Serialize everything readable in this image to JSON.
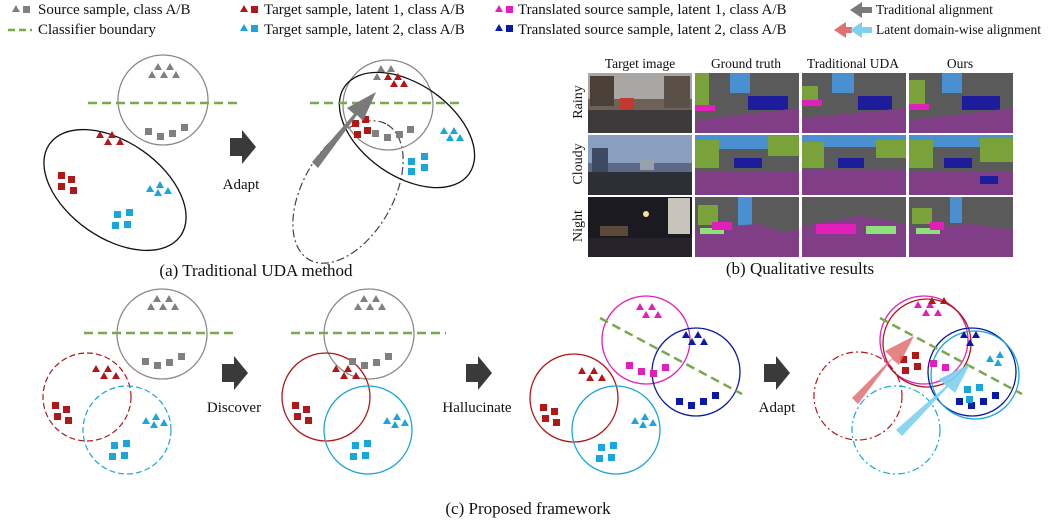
{
  "legend": {
    "source": "Source sample, class A/B",
    "boundary": "Classifier boundary",
    "target_l1": "Target sample,  latent 1, class A/B",
    "target_l2": "Target sample,  latent 2, class A/B",
    "trans_l1": "Translated source sample, latent 1, class A/B",
    "trans_l2": "Translated source sample, latent 2, class A/B",
    "trad_align": "Traditional alignment",
    "latent_align": "Latent domain-wise alignment"
  },
  "panel_a": {
    "caption": "(a) Traditional UDA method",
    "adapt": "Adapt"
  },
  "panel_b": {
    "caption": "(b) Qualitative results",
    "columns": [
      "Target image",
      "Ground truth",
      "Traditional UDA",
      "Ours"
    ],
    "rows": [
      "Rainy",
      "Cloudy",
      "Night"
    ]
  },
  "panel_c": {
    "caption": "(c) Proposed framework",
    "discover": "Discover",
    "hallucinate": "Hallucinate",
    "adapt": "Adapt"
  },
  "colors": {
    "source": "#808080",
    "target_l1": "#b01818",
    "target_l2": "#1aa6dc",
    "trans_l1": "#e020b8",
    "trans_l2": "#0a1aa8",
    "boundary": "#7aa84a",
    "latent_arrow_red": "#e07070",
    "latent_arrow_blue": "#7dd0f0"
  }
}
